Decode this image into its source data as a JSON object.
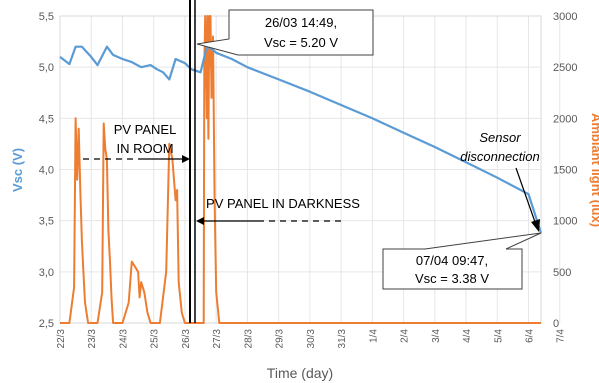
{
  "chart_data": {
    "type": "line",
    "xlabel": "Time (day)",
    "ylabel_left": "Vsc (V)",
    "ylabel_right": "Ambiant light (lux)",
    "ylim_left": [
      2.5,
      5.5
    ],
    "ylim_right": [
      0,
      3000
    ],
    "xlim": [
      "22/3",
      "7/4"
    ],
    "grid": true,
    "colors": {
      "vsc": "#5b9bd5",
      "light": "#ed7d31"
    },
    "x_ticks": [
      "22/3",
      "23/3",
      "24/3",
      "25/3",
      "26/3",
      "27/3",
      "28/3",
      "29/3",
      "30/3",
      "31/3",
      "1/4",
      "2/4",
      "3/4",
      "4/4",
      "5/4",
      "6/4",
      "7/4"
    ],
    "y_left_ticks": [
      "2,5",
      "3,0",
      "3,5",
      "4,0",
      "4,5",
      "5,0",
      "5,5"
    ],
    "y_right_ticks": [
      "0",
      "500",
      "1000",
      "1500",
      "2000",
      "2500",
      "3000"
    ],
    "series": [
      {
        "name": "Vsc",
        "axis": "left",
        "x": [
          22.0,
          22.3,
          22.5,
          22.7,
          23.0,
          23.2,
          23.5,
          23.7,
          24.0,
          24.3,
          24.6,
          24.9,
          25.1,
          25.3,
          25.5,
          25.7,
          26.0,
          26.2,
          26.5,
          26.7,
          26.85,
          27.0,
          27.5,
          28.0,
          29.0,
          30.0,
          31.0,
          32.0,
          33.0,
          34.0,
          35.0,
          36.0,
          37.0,
          37.4
        ],
        "values": [
          5.1,
          5.03,
          5.2,
          5.2,
          5.1,
          5.02,
          5.2,
          5.12,
          5.08,
          5.05,
          5.0,
          5.02,
          4.98,
          4.95,
          4.88,
          5.08,
          5.04,
          4.98,
          4.95,
          5.2,
          5.18,
          5.14,
          5.08,
          5.0,
          4.88,
          4.76,
          4.63,
          4.5,
          4.36,
          4.22,
          4.07,
          3.92,
          3.76,
          3.38
        ]
      },
      {
        "name": "Ambiant light",
        "axis": "right",
        "x": [
          22.0,
          22.3,
          22.45,
          22.5,
          22.55,
          22.6,
          22.65,
          22.7,
          22.75,
          22.8,
          22.9,
          23.0,
          23.2,
          23.35,
          23.4,
          23.45,
          23.5,
          23.55,
          23.6,
          23.65,
          23.7,
          23.8,
          24.0,
          24.2,
          24.3,
          24.4,
          24.5,
          24.55,
          24.6,
          24.7,
          24.8,
          24.9,
          25.2,
          25.4,
          25.5,
          25.6,
          25.7,
          25.75,
          25.8,
          25.9,
          26.0,
          26.6,
          26.62,
          26.65,
          26.7,
          26.72,
          26.75,
          26.78,
          26.8,
          26.82,
          26.85,
          26.9,
          26.95,
          27.0,
          27.1,
          27.5,
          37.4
        ],
        "values": [
          0,
          0,
          350,
          2000,
          1400,
          1900,
          1300,
          800,
          500,
          200,
          0,
          0,
          0,
          300,
          1950,
          1700,
          1600,
          900,
          600,
          250,
          0,
          0,
          0,
          200,
          600,
          550,
          500,
          250,
          400,
          300,
          100,
          0,
          0,
          500,
          1750,
          1600,
          1200,
          1300,
          400,
          100,
          0,
          0,
          2500,
          3000,
          2000,
          3000,
          1800,
          3000,
          2500,
          3000,
          2200,
          2800,
          1200,
          300,
          0,
          0,
          0
        ]
      }
    ],
    "annotations": {
      "start_box": [
        "26/03  14:49,",
        "Vsc = 5.20 V"
      ],
      "end_box": [
        "07/04  09:47,",
        "Vsc = 3.38 V"
      ],
      "room_label": [
        "PV PANEL",
        "IN ROOM"
      ],
      "darkness_label": "PV PANEL IN DARKNESS",
      "sensor_label": [
        "Sensor",
        "disconnection"
      ]
    }
  }
}
